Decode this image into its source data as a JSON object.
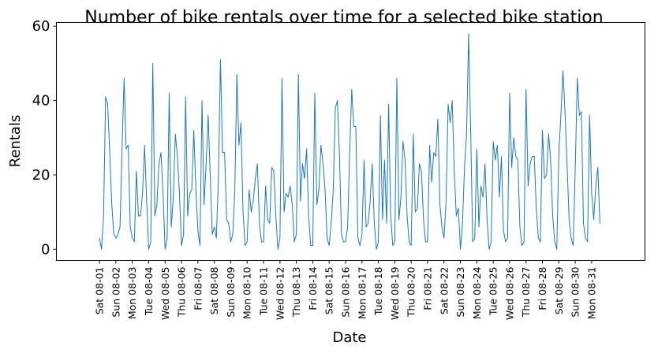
{
  "colors": {
    "series": "#1f77b4"
  },
  "chart_data": {
    "type": "line",
    "title": "Number of bike rentals over time for a selected bike station",
    "xlabel": "Date",
    "ylabel": "Rentals",
    "ylim": [
      -3,
      61
    ],
    "yticks": [
      0,
      20,
      40,
      60
    ],
    "xlim": [
      -21,
      266
    ],
    "grid": false,
    "legend": "none",
    "x_tick_positions": [
      0,
      8,
      16,
      24,
      32,
      40,
      48,
      56,
      64,
      72,
      80,
      88,
      96,
      104,
      112,
      120,
      128,
      136,
      144,
      152,
      160,
      168,
      176,
      184,
      192,
      200,
      208,
      216,
      224,
      232,
      240
    ],
    "x_tick_labels": [
      "Sat 08-01",
      "Sun 08-02",
      "Mon 08-03",
      "Tue 08-04",
      "Wed 08-05",
      "Thu 08-06",
      "Fri 08-07",
      "Sat 08-08",
      "Sun 08-09",
      "Mon 08-10",
      "Tue 08-11",
      "Wed 08-12",
      "Thu 08-13",
      "Fri 08-14",
      "Sat 08-15",
      "Sun 08-16",
      "Mon 08-17",
      "Tue 08-18",
      "Wed 08-19",
      "Thu 08-20",
      "Fri 08-21",
      "Sat 08-22",
      "Sun 08-23",
      "Mon 08-24",
      "Tue 08-25",
      "Wed 08-26",
      "Thu 08-27",
      "Fri 08-28",
      "Sat 08-29",
      "Sun 08-30",
      "Mon 08-31"
    ],
    "series": [
      {
        "values": [
          3,
          0,
          9,
          41,
          39,
          26,
          12,
          4,
          3,
          4,
          6,
          27,
          46,
          27,
          28,
          6,
          3,
          2,
          21,
          9,
          9,
          15,
          28,
          13,
          0,
          2,
          50,
          9,
          12,
          23,
          26,
          15,
          0,
          3,
          42,
          6,
          14,
          31,
          25,
          15,
          1,
          4,
          41,
          9,
          15,
          16,
          32,
          16,
          5,
          1,
          40,
          12,
          23,
          36,
          20,
          4,
          6,
          3,
          19,
          51,
          26,
          26,
          8,
          7,
          2,
          4,
          16,
          47,
          28,
          34,
          10,
          1,
          2,
          16,
          10,
          13,
          19,
          23,
          7,
          2,
          2,
          17,
          8,
          7,
          22,
          21,
          9,
          0,
          3,
          46,
          10,
          15,
          14,
          17,
          12,
          2,
          4,
          47,
          13,
          23,
          19,
          27,
          9,
          1,
          1,
          42,
          12,
          16,
          28,
          23,
          16,
          3,
          1,
          7,
          16,
          38,
          40,
          26,
          4,
          2,
          2,
          6,
          26,
          43,
          33,
          33,
          3,
          1,
          4,
          24,
          6,
          7,
          13,
          23,
          7,
          0,
          2,
          36,
          8,
          24,
          7,
          39,
          9,
          1,
          2,
          46,
          8,
          14,
          29,
          24,
          9,
          2,
          1,
          31,
          10,
          11,
          23,
          21,
          8,
          2,
          2,
          28,
          18,
          26,
          25,
          35,
          12,
          6,
          3,
          13,
          39,
          34,
          40,
          21,
          9,
          11,
          0,
          7,
          22,
          31,
          58,
          32,
          2,
          3,
          27,
          6,
          17,
          14,
          23,
          8,
          0,
          2,
          29,
          24,
          28,
          14,
          25,
          5,
          2,
          3,
          42,
          22,
          30,
          25,
          24,
          6,
          1,
          2,
          43,
          17,
          23,
          25,
          25,
          11,
          3,
          2,
          32,
          19,
          20,
          31,
          24,
          9,
          2,
          0,
          26,
          36,
          48,
          37,
          23,
          8,
          3,
          1,
          22,
          46,
          36,
          37,
          7,
          3,
          2,
          36,
          15,
          8,
          17,
          22,
          7
        ]
      }
    ]
  }
}
